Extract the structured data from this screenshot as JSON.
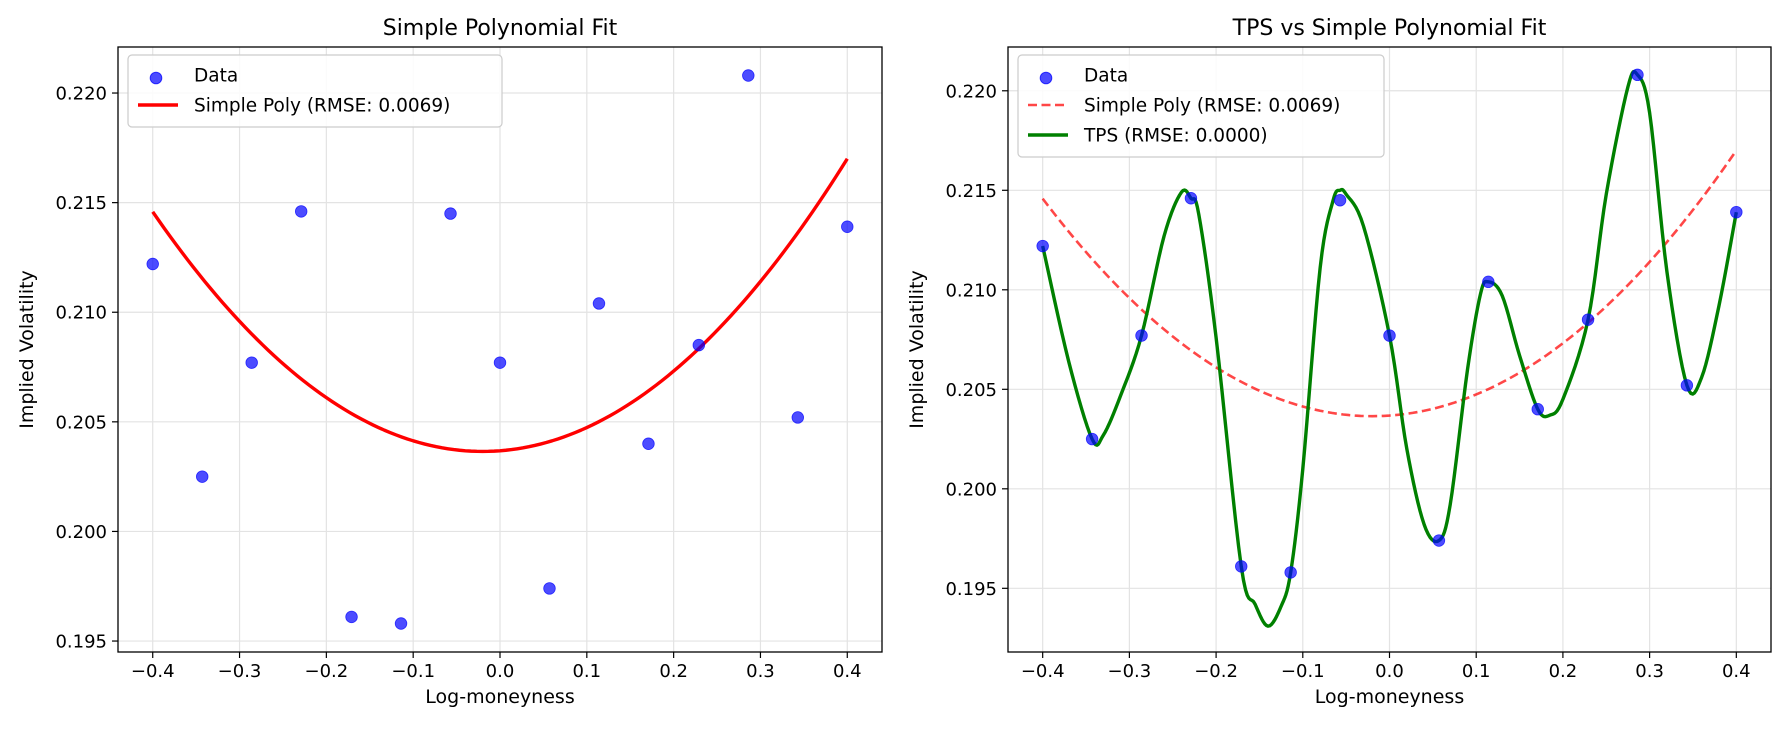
{
  "chart_data": [
    {
      "type": "scatter",
      "title": "Simple Polynomial Fit",
      "xlabel": "Log-moneyness",
      "ylabel": "Implied Volatility",
      "xlim": [
        -0.44,
        0.44
      ],
      "ylim": [
        0.1945,
        0.2221
      ],
      "xticks": [
        -0.4,
        -0.3,
        -0.2,
        -0.1,
        0.0,
        0.1,
        0.2,
        0.3,
        0.4
      ],
      "xtick_labels": [
        "−0.4",
        "−0.3",
        "−0.2",
        "−0.1",
        "0.0",
        "0.1",
        "0.2",
        "0.3",
        "0.4"
      ],
      "yticks": [
        0.195,
        0.2,
        0.205,
        0.21,
        0.215,
        0.22
      ],
      "ytick_labels": [
        "0.195",
        "0.200",
        "0.205",
        "0.210",
        "0.215",
        "0.220"
      ],
      "grid": true,
      "legend": "upper left",
      "series": [
        {
          "name": "Data",
          "kind": "scatter",
          "color": "#0000ff",
          "x": [
            -0.4,
            -0.343,
            -0.286,
            -0.229,
            -0.171,
            -0.114,
            -0.057,
            0.0,
            0.057,
            0.114,
            0.171,
            0.229,
            0.286,
            0.343,
            0.4
          ],
          "y": [
            0.2122,
            0.2025,
            0.2077,
            0.2146,
            0.1961,
            0.1958,
            0.2145,
            0.2077,
            0.1974,
            0.2104,
            0.204,
            0.2085,
            0.2208,
            0.2052,
            0.2139
          ]
        },
        {
          "name": "Simple Poly (RMSE: 0.0069)",
          "kind": "line",
          "style": "solid",
          "color": "#ff0000",
          "poly": {
            "vertex_x": -0.02,
            "vertex_y": 0.20365,
            "curvature": 0.0757
          }
        }
      ]
    },
    {
      "type": "line",
      "title": "TPS vs Simple Polynomial Fit",
      "xlabel": "Log-moneyness",
      "ylabel": "Implied Volatility",
      "xlim": [
        -0.44,
        0.44
      ],
      "ylim": [
        0.1918,
        0.2222
      ],
      "xticks": [
        -0.4,
        -0.3,
        -0.2,
        -0.1,
        0.0,
        0.1,
        0.2,
        0.3,
        0.4
      ],
      "xtick_labels": [
        "−0.4",
        "−0.3",
        "−0.2",
        "−0.1",
        "0.0",
        "0.1",
        "0.2",
        "0.3",
        "0.4"
      ],
      "yticks": [
        0.195,
        0.2,
        0.205,
        0.21,
        0.215,
        0.22
      ],
      "ytick_labels": [
        "0.195",
        "0.200",
        "0.205",
        "0.210",
        "0.215",
        "0.220"
      ],
      "grid": true,
      "legend": "upper left",
      "series": [
        {
          "name": "Data",
          "kind": "scatter",
          "color": "#0000ff",
          "x": [
            -0.4,
            -0.343,
            -0.286,
            -0.229,
            -0.171,
            -0.114,
            -0.057,
            0.0,
            0.057,
            0.114,
            0.171,
            0.229,
            0.286,
            0.343,
            0.4
          ],
          "y": [
            0.2122,
            0.2025,
            0.2077,
            0.2146,
            0.1961,
            0.1958,
            0.2145,
            0.2077,
            0.1974,
            0.2104,
            0.204,
            0.2085,
            0.2208,
            0.2052,
            0.2139
          ]
        },
        {
          "name": "Simple Poly (RMSE: 0.0069)",
          "kind": "line",
          "style": "dashed",
          "color": "#ff0000",
          "poly": {
            "vertex_x": -0.02,
            "vertex_y": 0.20365,
            "curvature": 0.0757
          }
        },
        {
          "name": "TPS (RMSE: 0.0000)",
          "kind": "line",
          "style": "solid",
          "color": "#008000",
          "x": [
            -0.4,
            -0.37,
            -0.343,
            -0.33,
            -0.31,
            -0.286,
            -0.26,
            -0.24,
            -0.229,
            -0.22,
            -0.2,
            -0.171,
            -0.155,
            -0.14,
            -0.125,
            -0.114,
            -0.1,
            -0.08,
            -0.065,
            -0.057,
            -0.05,
            -0.03,
            0.0,
            0.02,
            0.04,
            0.057,
            0.07,
            0.09,
            0.105,
            0.114,
            0.13,
            0.15,
            0.171,
            0.185,
            0.2,
            0.229,
            0.25,
            0.275,
            0.286,
            0.3,
            0.32,
            0.343,
            0.36,
            0.38,
            0.4
          ],
          "y": [
            0.2122,
            0.2064,
            0.2025,
            0.2027,
            0.2047,
            0.2077,
            0.2127,
            0.2149,
            0.2146,
            0.2138,
            0.2076,
            0.1961,
            0.1942,
            0.1931,
            0.1941,
            0.1958,
            0.201,
            0.2111,
            0.2145,
            0.215,
            0.2148,
            0.2132,
            0.2077,
            0.202,
            0.1982,
            0.1974,
            0.1992,
            0.206,
            0.2098,
            0.2104,
            0.2097,
            0.2067,
            0.204,
            0.2037,
            0.2045,
            0.2085,
            0.2148,
            0.2202,
            0.2208,
            0.2189,
            0.2109,
            0.2052,
            0.2056,
            0.2092,
            0.2139
          ]
        }
      ]
    }
  ]
}
